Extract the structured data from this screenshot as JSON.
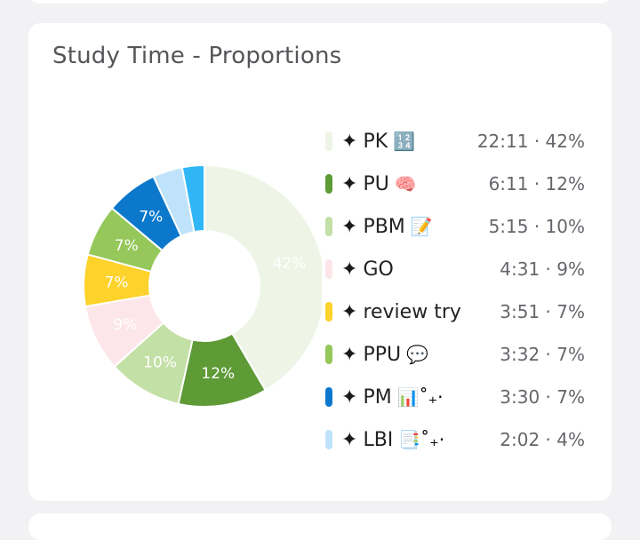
{
  "card": {
    "title": "Study Time - Proportions"
  },
  "chart_data": {
    "type": "pie",
    "title": "Study Time - Proportions",
    "slices": [
      {
        "label": "PK",
        "emoji": "🔢",
        "time": "22:11",
        "percent": 42,
        "percent_label": "42%",
        "color": "#eef5e6",
        "label_color": "#ffffff"
      },
      {
        "label": "PU",
        "emoji": "🧠",
        "time": "6:11",
        "percent": 12,
        "percent_label": "12%",
        "color": "#5e9a36",
        "label_color": "#ffffff"
      },
      {
        "label": "PBM",
        "emoji": "📝",
        "time": "5:15",
        "percent": 10,
        "percent_label": "10%",
        "color": "#c3e0a6",
        "label_color": "#ffffff"
      },
      {
        "label": "GO",
        "emoji": "",
        "time": "4:31",
        "percent": 9,
        "percent_label": "9%",
        "color": "#fde6ea",
        "label_color": "#ffffff"
      },
      {
        "label": "review try",
        "emoji": "",
        "time": "3:51",
        "percent": 7,
        "percent_label": "7%",
        "color": "#fdd22a",
        "label_color": "#ffffff"
      },
      {
        "label": "PPU",
        "emoji": "💬",
        "time": "3:32",
        "percent": 7,
        "percent_label": "7%",
        "color": "#95c75a",
        "label_color": "#ffffff"
      },
      {
        "label": "PM",
        "emoji": "📊˚₊‧",
        "time": "3:30",
        "percent": 7,
        "percent_label": "7%",
        "color": "#0b78cc",
        "label_color": "#ffffff"
      },
      {
        "label": "LBI",
        "emoji": "📑˚₊‧",
        "time": "2:02",
        "percent": 4,
        "percent_label": "",
        "color": "#bfe3fb",
        "label_color": "#ffffff"
      },
      {
        "label": "",
        "emoji": "",
        "time": "",
        "percent": 3,
        "percent_label": "",
        "color": "#30b6f5",
        "label_color": "#ffffff"
      }
    ],
    "legend_prefix": "✦",
    "legend_separator": " · "
  }
}
